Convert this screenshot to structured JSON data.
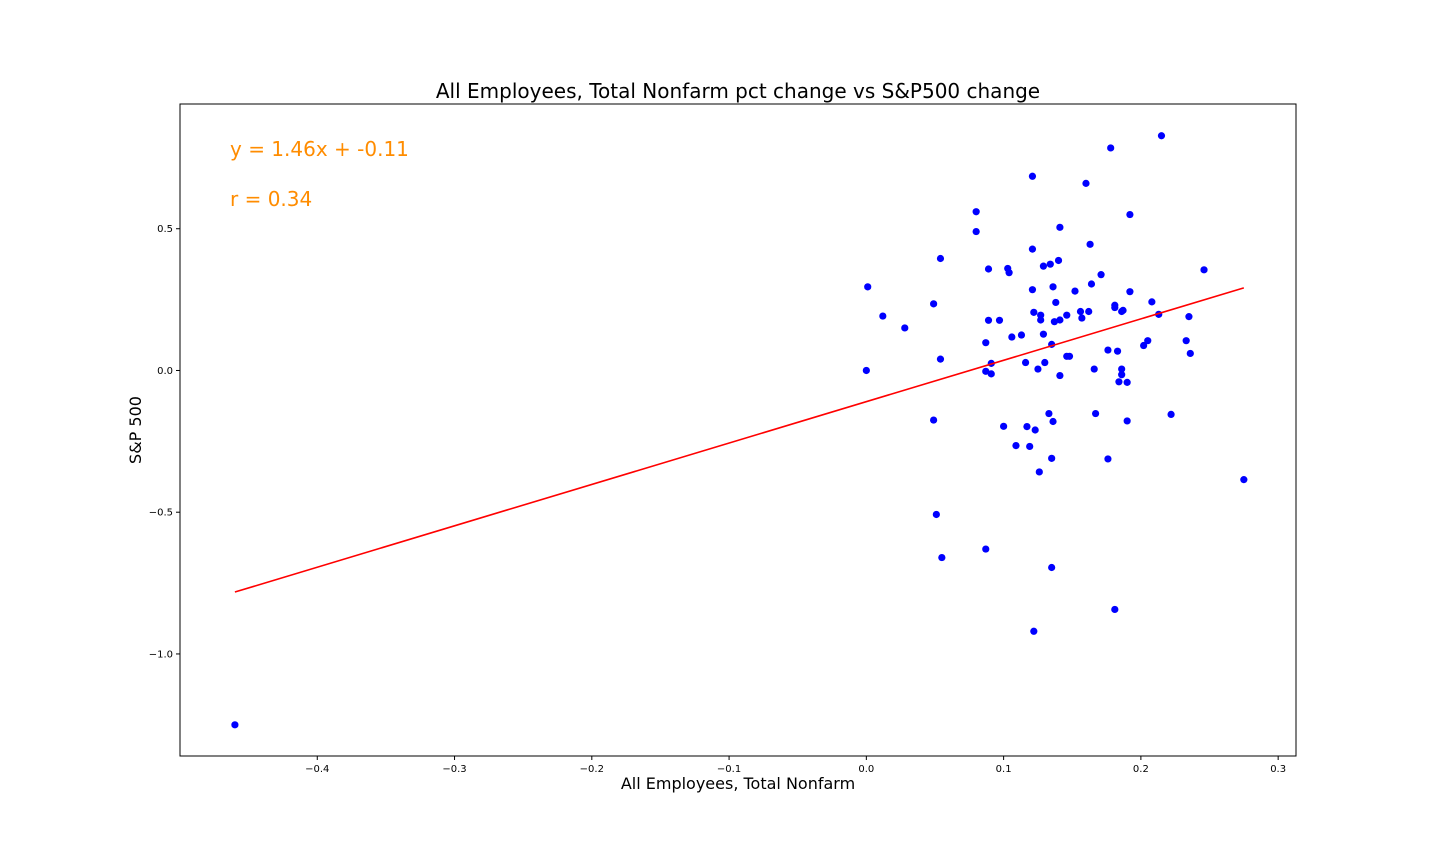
{
  "chart_data": {
    "type": "scatter",
    "title": "All Employees, Total Nonfarm pct change vs S&P500 change",
    "xlabel": "All Employees, Total Nonfarm",
    "ylabel": "S&P 500",
    "xlim": [
      -0.5,
      0.313
    ],
    "ylim": [
      -1.36,
      0.94
    ],
    "xticks": [
      -0.4,
      -0.3,
      -0.2,
      -0.1,
      0.0,
      0.1,
      0.2,
      0.3
    ],
    "xtick_labels": [
      "−0.4",
      "−0.3",
      "−0.2",
      "−0.1",
      "0.0",
      "0.1",
      "0.2",
      "0.3"
    ],
    "yticks": [
      -1.0,
      -0.5,
      0.0,
      0.5
    ],
    "ytick_labels": [
      "−1.0",
      "−0.5",
      "0.0",
      "0.5"
    ],
    "grid": false,
    "legend": "none",
    "colors": {
      "points": "#0000ff",
      "fit_line": "#ff0000",
      "annotation": "#ff8c00"
    },
    "annotations": [
      "y = 1.46x + -0.11",
      "r = 0.34"
    ],
    "fit_line": {
      "slope": 1.46,
      "intercept": -0.11,
      "x_range": [
        -0.46,
        0.275
      ]
    },
    "points": [
      [
        -0.46,
        -1.25
      ],
      [
        0.0,
        0.0
      ],
      [
        0.001,
        0.295
      ],
      [
        0.012,
        0.192
      ],
      [
        0.028,
        0.15
      ],
      [
        0.049,
        0.235
      ],
      [
        0.049,
        -0.175
      ],
      [
        0.051,
        -0.508
      ],
      [
        0.054,
        0.04
      ],
      [
        0.054,
        0.395
      ],
      [
        0.055,
        -0.66
      ],
      [
        0.08,
        0.56
      ],
      [
        0.08,
        0.49
      ],
      [
        0.087,
        -0.003
      ],
      [
        0.087,
        0.098
      ],
      [
        0.087,
        -0.63
      ],
      [
        0.089,
        0.358
      ],
      [
        0.089,
        0.177
      ],
      [
        0.091,
        0.025
      ],
      [
        0.091,
        -0.012
      ],
      [
        0.097,
        0.177
      ],
      [
        0.1,
        -0.197
      ],
      [
        0.103,
        0.36
      ],
      [
        0.104,
        0.345
      ],
      [
        0.106,
        0.118
      ],
      [
        0.109,
        -0.265
      ],
      [
        0.113,
        0.125
      ],
      [
        0.116,
        0.028
      ],
      [
        0.117,
        -0.198
      ],
      [
        0.119,
        -0.268
      ],
      [
        0.121,
        0.685
      ],
      [
        0.121,
        0.428
      ],
      [
        0.121,
        0.285
      ],
      [
        0.122,
        0.205
      ],
      [
        0.122,
        -0.92
      ],
      [
        0.123,
        -0.21
      ],
      [
        0.125,
        0.005
      ],
      [
        0.126,
        -0.358
      ],
      [
        0.127,
        0.195
      ],
      [
        0.127,
        0.178
      ],
      [
        0.129,
        0.128
      ],
      [
        0.129,
        0.368
      ],
      [
        0.13,
        0.028
      ],
      [
        0.133,
        -0.152
      ],
      [
        0.134,
        0.375
      ],
      [
        0.135,
        0.092
      ],
      [
        0.135,
        -0.31
      ],
      [
        0.135,
        -0.695
      ],
      [
        0.136,
        0.295
      ],
      [
        0.136,
        -0.18
      ],
      [
        0.137,
        0.172
      ],
      [
        0.138,
        0.24
      ],
      [
        0.14,
        0.388
      ],
      [
        0.141,
        0.178
      ],
      [
        0.141,
        0.505
      ],
      [
        0.141,
        -0.018
      ],
      [
        0.146,
        0.195
      ],
      [
        0.146,
        0.05
      ],
      [
        0.148,
        0.05
      ],
      [
        0.152,
        0.28
      ],
      [
        0.156,
        0.208
      ],
      [
        0.157,
        0.185
      ],
      [
        0.16,
        0.66
      ],
      [
        0.162,
        0.208
      ],
      [
        0.163,
        0.445
      ],
      [
        0.164,
        0.305
      ],
      [
        0.166,
        0.005
      ],
      [
        0.167,
        -0.152
      ],
      [
        0.171,
        0.338
      ],
      [
        0.176,
        0.072
      ],
      [
        0.176,
        -0.312
      ],
      [
        0.178,
        0.785
      ],
      [
        0.181,
        0.23
      ],
      [
        0.181,
        0.222
      ],
      [
        0.181,
        -0.843
      ],
      [
        0.183,
        0.068
      ],
      [
        0.184,
        -0.04
      ],
      [
        0.186,
        0.208
      ],
      [
        0.186,
        0.005
      ],
      [
        0.186,
        -0.015
      ],
      [
        0.187,
        0.212
      ],
      [
        0.19,
        -0.042
      ],
      [
        0.19,
        -0.178
      ],
      [
        0.192,
        0.278
      ],
      [
        0.192,
        0.55
      ],
      [
        0.202,
        0.088
      ],
      [
        0.205,
        0.105
      ],
      [
        0.208,
        0.242
      ],
      [
        0.213,
        0.198
      ],
      [
        0.215,
        0.828
      ],
      [
        0.222,
        -0.155
      ],
      [
        0.233,
        0.105
      ],
      [
        0.235,
        0.19
      ],
      [
        0.236,
        0.06
      ],
      [
        0.246,
        0.355
      ],
      [
        0.275,
        -0.385
      ]
    ]
  }
}
